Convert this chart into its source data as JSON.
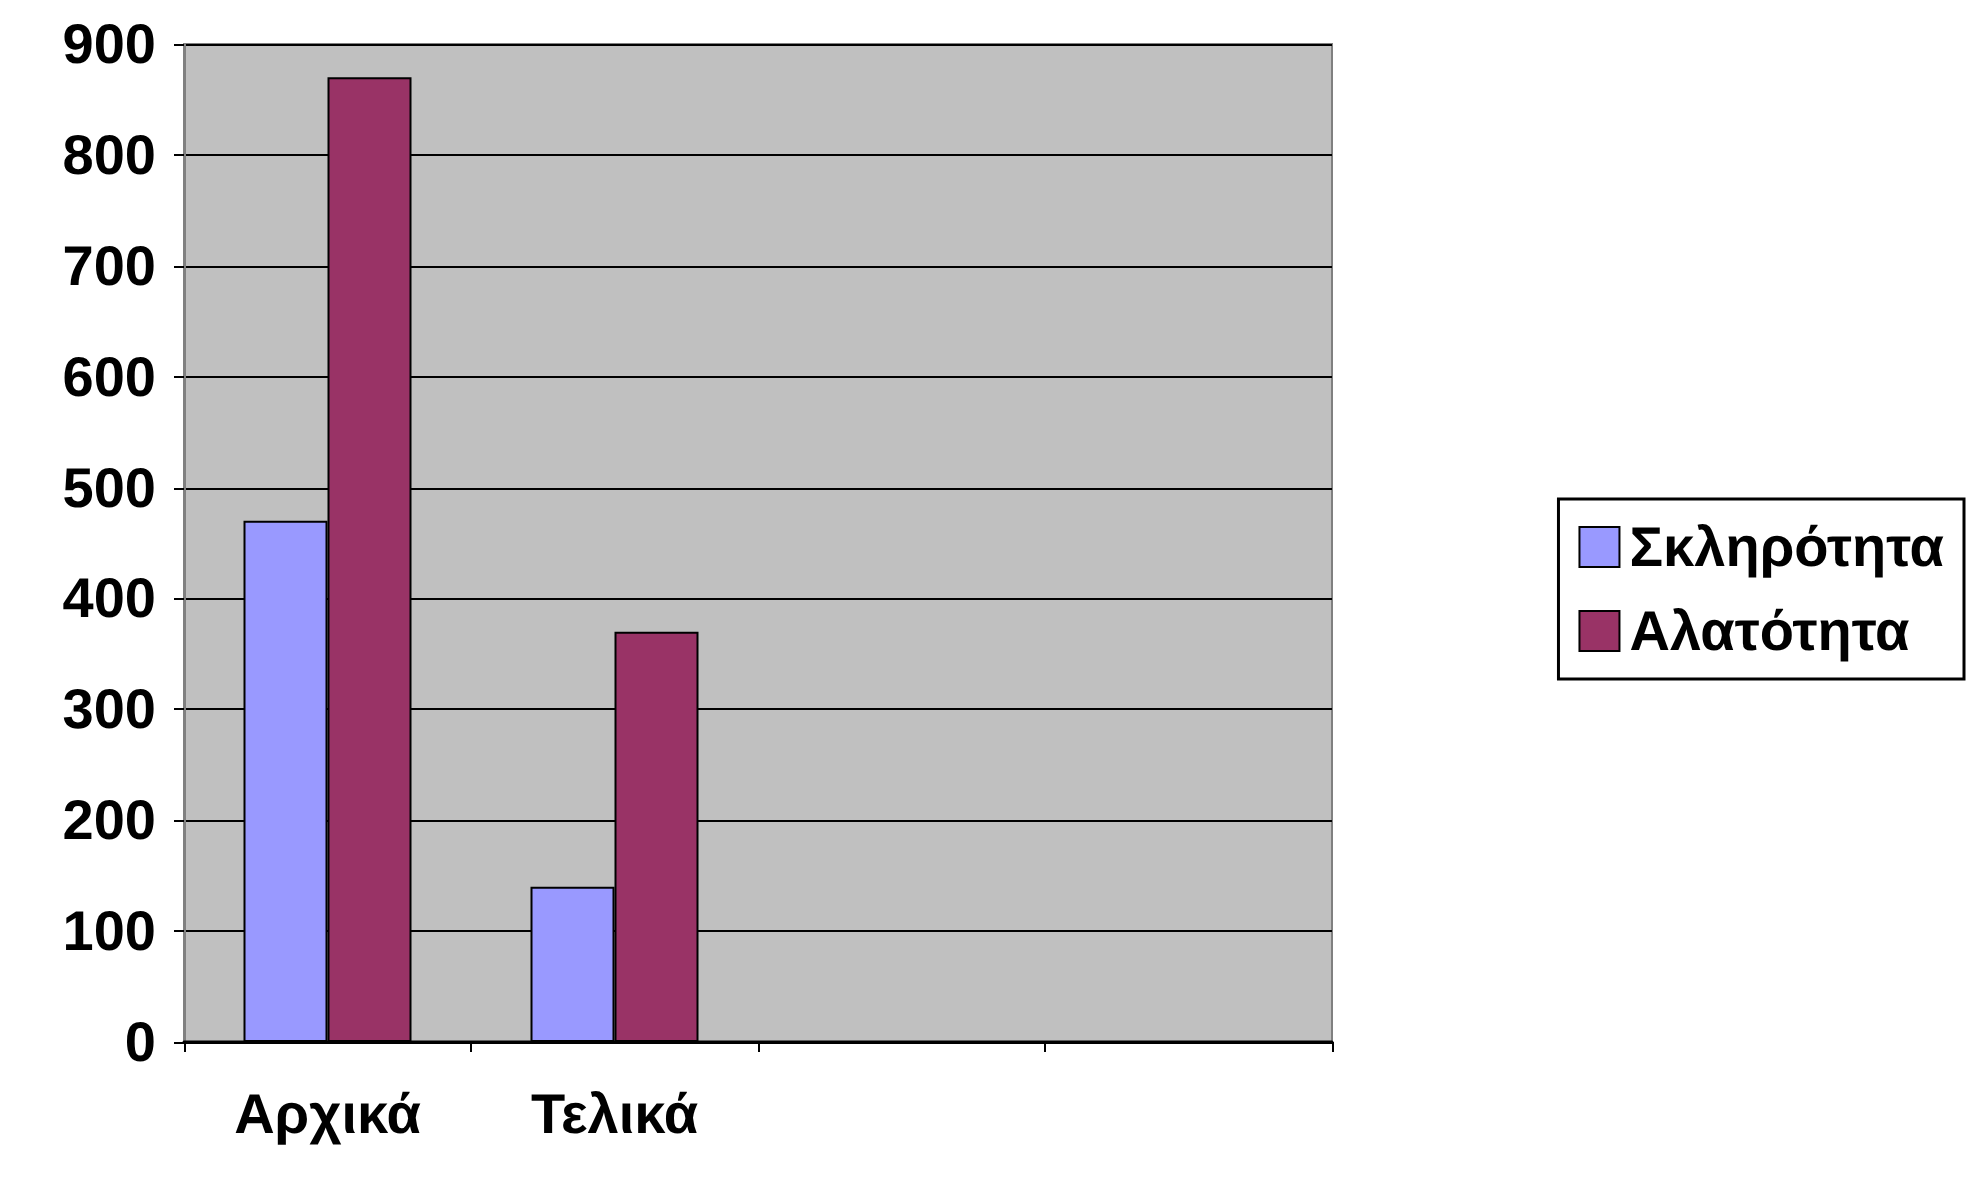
{
  "chart_data": {
    "type": "bar",
    "categories": [
      "Αρχικά",
      "Τελικά",
      null,
      null
    ],
    "series": [
      {
        "name": "Σκληρότητα",
        "color": "#9999ff",
        "values": [
          470,
          140,
          null,
          null
        ]
      },
      {
        "name": "Αλατότητα",
        "color": "#993366",
        "values": [
          870,
          370,
          null,
          null
        ]
      }
    ],
    "ylim": [
      0,
      900
    ],
    "yticks": [
      0,
      100,
      200,
      300,
      400,
      500,
      600,
      700,
      800,
      900
    ],
    "grid": "y",
    "legend": "right"
  }
}
